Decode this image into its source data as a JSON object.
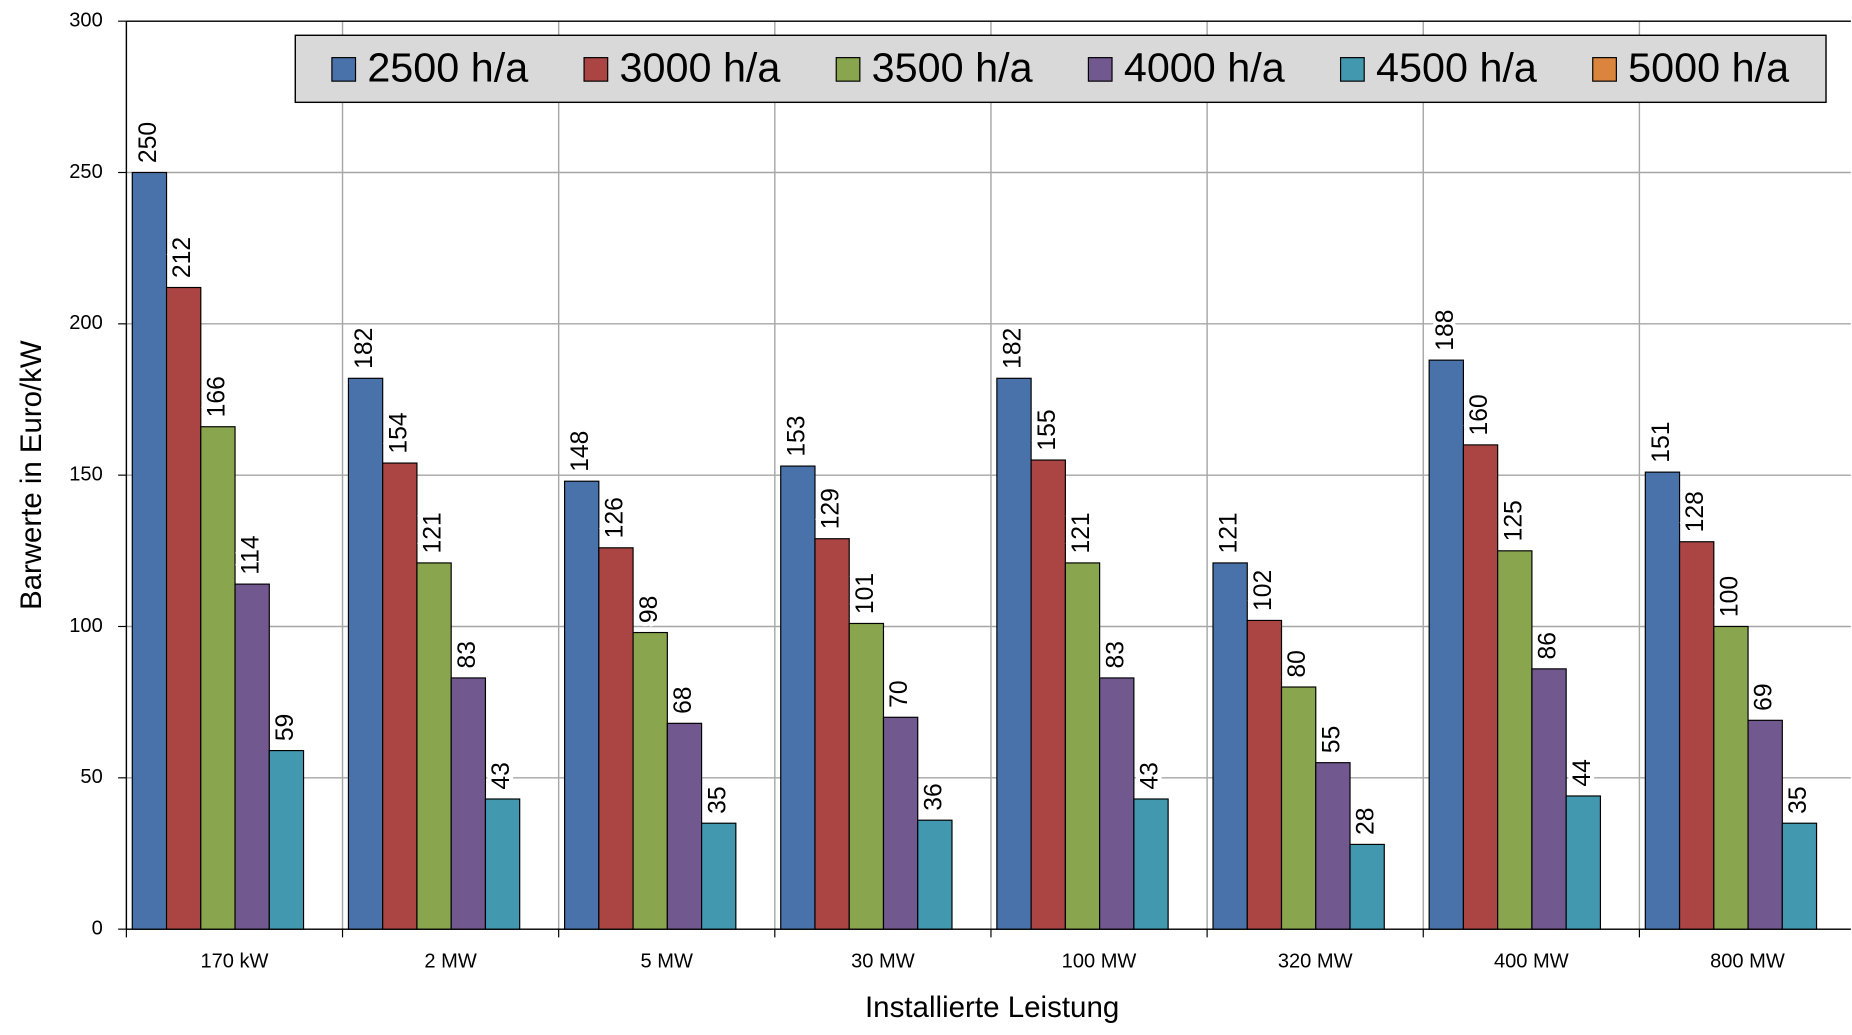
{
  "chart_data": {
    "type": "bar",
    "xlabel": "Installierte Leistung",
    "ylabel": "Barwerte in Euro/kW",
    "categories": [
      "170 kW",
      "2 MW",
      "5 MW",
      "30 MW",
      "100 MW",
      "320 MW",
      "400 MW",
      "800 MW"
    ],
    "series": [
      {
        "name": "2500 h/a",
        "color": "#4a72aa",
        "values": [
          250,
          182,
          148,
          153,
          182,
          121,
          188,
          151
        ]
      },
      {
        "name": "3000 h/a",
        "color": "#aa4543",
        "values": [
          212,
          154,
          126,
          129,
          155,
          102,
          160,
          128
        ]
      },
      {
        "name": "3500 h/a",
        "color": "#89a54e",
        "values": [
          166,
          121,
          98,
          101,
          121,
          80,
          125,
          100
        ]
      },
      {
        "name": "4000 h/a",
        "color": "#71588f",
        "values": [
          114,
          83,
          68,
          70,
          83,
          55,
          86,
          69
        ]
      },
      {
        "name": "4500 h/a",
        "color": "#4198af",
        "values": [
          59,
          43,
          35,
          36,
          43,
          28,
          44,
          35
        ]
      },
      {
        "name": "5000 h/a",
        "color": "#db843d",
        "values": [
          null,
          null,
          null,
          null,
          null,
          null,
          null,
          null
        ]
      }
    ],
    "ylim": [
      0,
      300
    ],
    "yticks": [
      0,
      50,
      100,
      150,
      200,
      250,
      300
    ],
    "grid": true,
    "legend": "top"
  }
}
